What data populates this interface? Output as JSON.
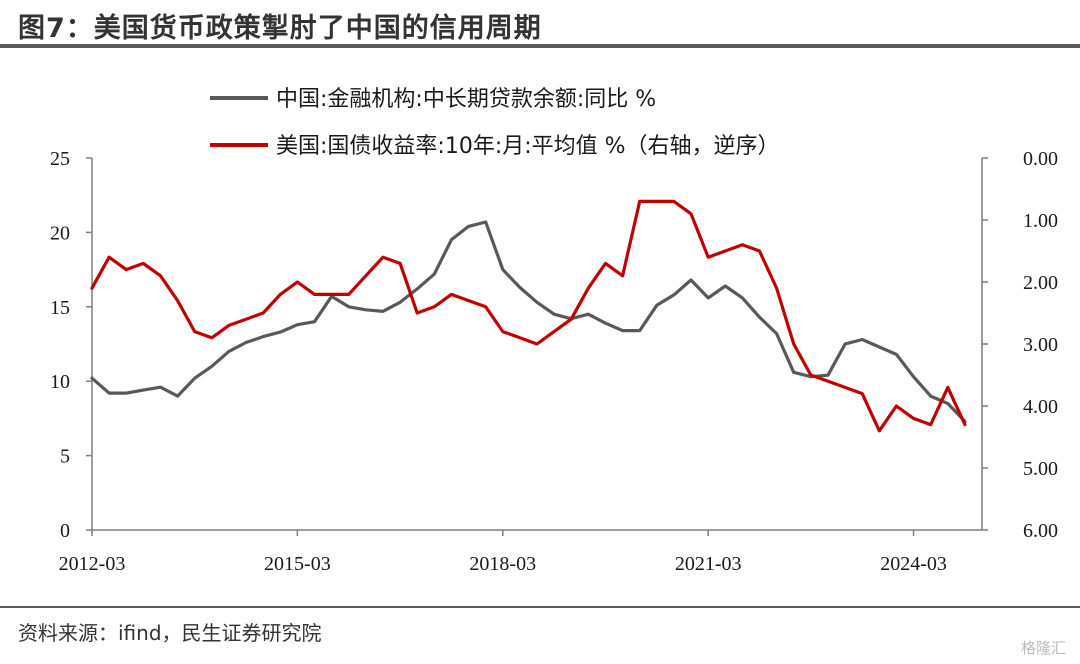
{
  "figure": {
    "title": "图7：美国货币政策掣肘了中国的信用周期",
    "source": "资料来源：ifind，民生证券研究院",
    "watermark": "格隆汇"
  },
  "chart_data": {
    "type": "line",
    "title": "",
    "xlabel": "",
    "ylabel_left": "",
    "ylabel_right": "",
    "x_ticks": [
      "2012-03",
      "2015-03",
      "2018-03",
      "2021-03",
      "2024-03"
    ],
    "y_left": {
      "min": 0,
      "max": 25,
      "ticks": [
        "0",
        "5",
        "10",
        "15",
        "20",
        "25"
      ]
    },
    "y_right": {
      "min": 0,
      "max": 6,
      "inverted": true,
      "ticks": [
        "0.00",
        "1.00",
        "2.00",
        "3.00",
        "4.00",
        "5.00",
        "6.00"
      ]
    },
    "grid": false,
    "legend_position": "top",
    "series": [
      {
        "name": "中国:金融机构:中长期贷款余额:同比 %",
        "color": "#595959",
        "axis": "left",
        "points": [
          [
            "2012-03",
            10.2
          ],
          [
            "2012-06",
            9.2
          ],
          [
            "2012-09",
            9.2
          ],
          [
            "2012-12",
            9.4
          ],
          [
            "2013-03",
            9.6
          ],
          [
            "2013-06",
            9.0
          ],
          [
            "2013-09",
            10.2
          ],
          [
            "2013-12",
            11.0
          ],
          [
            "2014-03",
            12.0
          ],
          [
            "2014-06",
            12.6
          ],
          [
            "2014-09",
            13.0
          ],
          [
            "2014-12",
            13.3
          ],
          [
            "2015-03",
            13.8
          ],
          [
            "2015-06",
            14.0
          ],
          [
            "2015-09",
            15.7
          ],
          [
            "2015-12",
            15.0
          ],
          [
            "2016-03",
            14.8
          ],
          [
            "2016-06",
            14.7
          ],
          [
            "2016-09",
            15.3
          ],
          [
            "2016-12",
            16.2
          ],
          [
            "2017-03",
            17.2
          ],
          [
            "2017-06",
            19.5
          ],
          [
            "2017-09",
            20.4
          ],
          [
            "2017-12",
            20.7
          ],
          [
            "2018-03",
            17.5
          ],
          [
            "2018-06",
            16.3
          ],
          [
            "2018-09",
            15.3
          ],
          [
            "2018-12",
            14.5
          ],
          [
            "2019-03",
            14.2
          ],
          [
            "2019-06",
            14.5
          ],
          [
            "2019-09",
            13.9
          ],
          [
            "2019-12",
            13.4
          ],
          [
            "2020-03",
            13.4
          ],
          [
            "2020-06",
            15.1
          ],
          [
            "2020-09",
            15.8
          ],
          [
            "2020-12",
            16.8
          ],
          [
            "2021-03",
            15.6
          ],
          [
            "2021-06",
            16.4
          ],
          [
            "2021-09",
            15.6
          ],
          [
            "2021-12",
            14.3
          ],
          [
            "2022-03",
            13.2
          ],
          [
            "2022-06",
            10.6
          ],
          [
            "2022-09",
            10.3
          ],
          [
            "2022-12",
            10.4
          ],
          [
            "2023-03",
            12.5
          ],
          [
            "2023-06",
            12.8
          ],
          [
            "2023-09",
            12.3
          ],
          [
            "2023-12",
            11.8
          ],
          [
            "2024-03",
            10.3
          ],
          [
            "2024-06",
            9.0
          ],
          [
            "2024-09",
            8.5
          ],
          [
            "2024-12",
            7.3
          ]
        ]
      },
      {
        "name": "美国:国债收益率:10年:月:平均值 %（右轴，逆序）",
        "color": "#c00000",
        "axis": "right",
        "points": [
          [
            "2012-03",
            2.1
          ],
          [
            "2012-06",
            1.6
          ],
          [
            "2012-09",
            1.8
          ],
          [
            "2012-12",
            1.7
          ],
          [
            "2013-03",
            1.9
          ],
          [
            "2013-06",
            2.3
          ],
          [
            "2013-09",
            2.8
          ],
          [
            "2013-12",
            2.9
          ],
          [
            "2014-03",
            2.7
          ],
          [
            "2014-06",
            2.6
          ],
          [
            "2014-09",
            2.5
          ],
          [
            "2014-12",
            2.2
          ],
          [
            "2015-03",
            2.0
          ],
          [
            "2015-06",
            2.2
          ],
          [
            "2015-09",
            2.2
          ],
          [
            "2015-12",
            2.2
          ],
          [
            "2016-03",
            1.9
          ],
          [
            "2016-06",
            1.6
          ],
          [
            "2016-09",
            1.7
          ],
          [
            "2016-12",
            2.5
          ],
          [
            "2017-03",
            2.4
          ],
          [
            "2017-06",
            2.2
          ],
          [
            "2017-09",
            2.3
          ],
          [
            "2017-12",
            2.4
          ],
          [
            "2018-03",
            2.8
          ],
          [
            "2018-06",
            2.9
          ],
          [
            "2018-09",
            3.0
          ],
          [
            "2018-12",
            2.8
          ],
          [
            "2019-03",
            2.6
          ],
          [
            "2019-06",
            2.1
          ],
          [
            "2019-09",
            1.7
          ],
          [
            "2019-12",
            1.9
          ],
          [
            "2020-03",
            0.7
          ],
          [
            "2020-06",
            0.7
          ],
          [
            "2020-09",
            0.7
          ],
          [
            "2020-12",
            0.9
          ],
          [
            "2021-03",
            1.6
          ],
          [
            "2021-06",
            1.5
          ],
          [
            "2021-09",
            1.4
          ],
          [
            "2021-12",
            1.5
          ],
          [
            "2022-03",
            2.1
          ],
          [
            "2022-06",
            3.0
          ],
          [
            "2022-09",
            3.5
          ],
          [
            "2022-12",
            3.6
          ],
          [
            "2023-03",
            3.7
          ],
          [
            "2023-06",
            3.8
          ],
          [
            "2023-09",
            4.4
          ],
          [
            "2023-12",
            4.0
          ],
          [
            "2024-03",
            4.2
          ],
          [
            "2024-06",
            4.3
          ],
          [
            "2024-09",
            3.7
          ],
          [
            "2024-12",
            4.3
          ]
        ]
      }
    ]
  }
}
